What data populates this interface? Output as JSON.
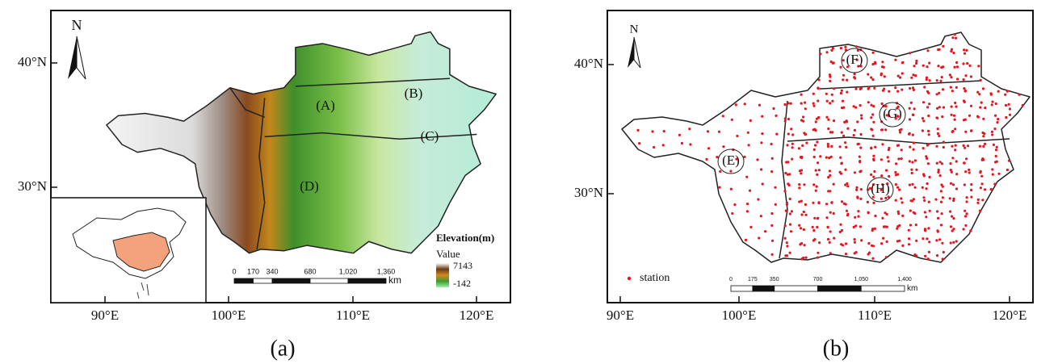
{
  "panels": [
    {
      "caption": "(a)",
      "north": "N",
      "lat_labels": [
        "40°N",
        "30°N"
      ],
      "lon_labels": [
        "90°E",
        "100°E",
        "110°E",
        "120°E"
      ],
      "regions": [
        "(A)",
        "(B)",
        "(C)",
        "(D)"
      ],
      "legend": {
        "title": "Elevation(m)",
        "subtitle": "Value",
        "max": "7143",
        "min": "-142"
      },
      "scale": {
        "labels": [
          "0",
          "170",
          "340",
          "680",
          "1,020",
          "1,360"
        ],
        "unit": "km"
      }
    },
    {
      "caption": "(b)",
      "north": "N",
      "lat_labels": [
        "40°N",
        "30°N"
      ],
      "lon_labels": [
        "90°E",
        "100°E",
        "110°E",
        "120°E"
      ],
      "regions": [
        "(E)",
        "(F)",
        "(G)",
        "(H)"
      ],
      "legend": {
        "label": "station"
      },
      "scale": {
        "labels": [
          "0",
          "175",
          "350",
          "700",
          "1,050",
          "1,400"
        ],
        "unit": "km"
      }
    }
  ]
}
